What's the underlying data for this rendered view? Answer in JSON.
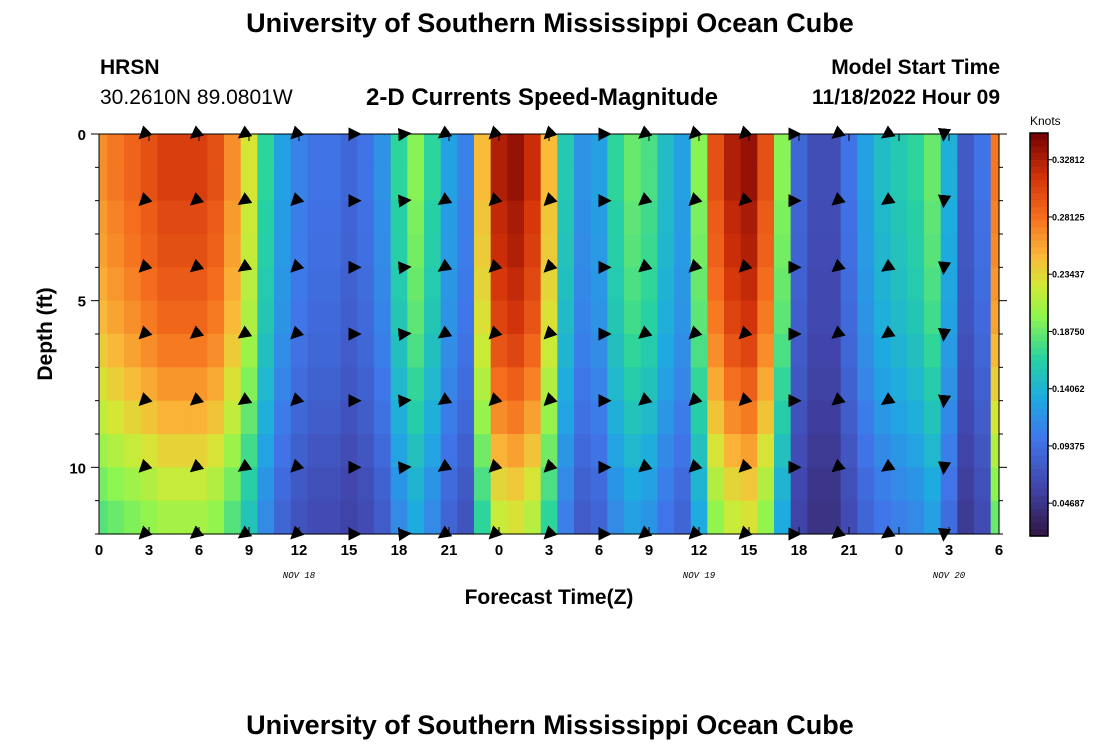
{
  "header": {
    "title": "University of Southern Mississippi Ocean Cube",
    "station": "HRSN",
    "coords": "30.2610N  89.0801W",
    "subtitle": "2-D Currents Speed-Magnitude",
    "model_label": "Model Start Time",
    "model_time": "11/18/2022 Hour 09"
  },
  "footer": {
    "title": "University of Southern Mississippi Ocean Cube"
  },
  "chart_data": {
    "type": "heatmap",
    "title": "2-D Currents Speed-Magnitude",
    "xlabel": "Forecast Time(Z)",
    "ylabel": "Depth (ft)",
    "xlim": [
      0,
      54
    ],
    "ylim": [
      0,
      12
    ],
    "x_tick_labels": [
      "0",
      "3",
      "6",
      "9",
      "12",
      "15",
      "18",
      "21",
      "0",
      "3",
      "6",
      "9",
      "12",
      "15",
      "18",
      "21",
      "0",
      "3",
      "6"
    ],
    "y_ticks": [
      0,
      5,
      10
    ],
    "date_labels": [
      {
        "label": "NOV 18",
        "hour": 12
      },
      {
        "label": "NOV 19",
        "hour": 36
      },
      {
        "label": "NOV 20",
        "hour": 51
      }
    ],
    "colorbar": {
      "label": "Knots",
      "min": 0.02,
      "max": 0.35,
      "tick_values": [
        0.32812,
        0.28125,
        0.23437,
        0.1875,
        0.14062,
        0.09375,
        0.04687
      ],
      "tick_labels": [
        "0.32812",
        "0.28125",
        "0.23437",
        "0.18750",
        "0.14062",
        "0.09375",
        "0.04687"
      ]
    },
    "time_hours": [
      0,
      1,
      2,
      3,
      4,
      5,
      6,
      7,
      8,
      9,
      10,
      11,
      12,
      13,
      14,
      15,
      16,
      17,
      18,
      19,
      20,
      21,
      22,
      23,
      24,
      25,
      26,
      27,
      28,
      29,
      30,
      31,
      32,
      33,
      34,
      35,
      36,
      37,
      38,
      39,
      40,
      41,
      42,
      43,
      44,
      45,
      46,
      47,
      48,
      49,
      50,
      51,
      52,
      53,
      54
    ],
    "surface_speed_knots": [
      0.27,
      0.28,
      0.29,
      0.3,
      0.31,
      0.31,
      0.31,
      0.3,
      0.27,
      0.23,
      0.17,
      0.13,
      0.11,
      0.1,
      0.1,
      0.09,
      0.1,
      0.12,
      0.17,
      0.2,
      0.17,
      0.13,
      0.11,
      0.25,
      0.33,
      0.34,
      0.32,
      0.25,
      0.16,
      0.12,
      0.13,
      0.17,
      0.19,
      0.18,
      0.15,
      0.13,
      0.2,
      0.3,
      0.33,
      0.34,
      0.3,
      0.2,
      0.09,
      0.07,
      0.07,
      0.1,
      0.13,
      0.15,
      0.16,
      0.17,
      0.19,
      0.14,
      0.08,
      0.1,
      0.28
    ],
    "depth_factor": [
      1.0,
      1.0,
      0.98,
      0.97,
      0.95,
      0.93,
      0.9,
      0.86,
      0.82,
      0.77,
      0.72,
      0.68
    ],
    "vector_rows_ft": [
      0,
      2,
      4,
      6,
      8,
      10,
      12
    ],
    "vector_columns_hours": [
      2.7,
      5.8,
      8.7,
      11.8,
      15.3,
      18.3,
      20.7,
      23.7,
      27.0,
      30.3,
      32.7,
      35.7,
      38.7,
      41.7,
      44.3,
      47.3,
      50.7
    ],
    "vector_directions_deg": [
      225,
      220,
      215,
      225,
      0,
      5,
      215,
      225,
      225,
      0,
      220,
      225,
      225,
      0,
      220,
      215,
      265
    ]
  }
}
